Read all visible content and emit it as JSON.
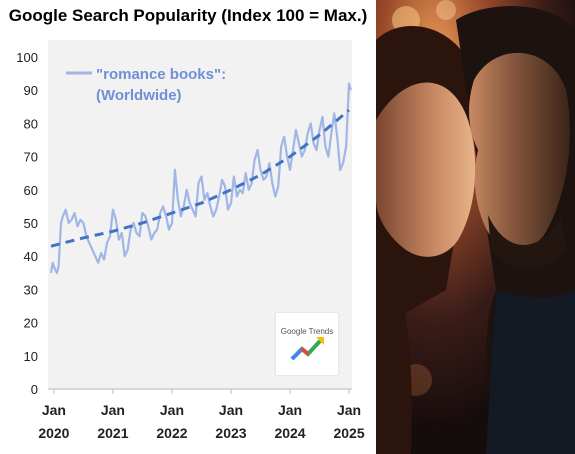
{
  "chart_data": {
    "type": "line",
    "title": "Google Search Popularity (Index 100 = Max.)",
    "legend": [
      "\"romance books\":",
      "(Worldwide)"
    ],
    "series": [
      {
        "name": "\"romance books\": (Worldwide)",
        "style": "solid",
        "color": "#9fb6e6",
        "x": [
          2019.95,
          2019.98,
          2020.02,
          2020.05,
          2020.08,
          2020.12,
          2020.15,
          2020.2,
          2020.25,
          2020.3,
          2020.35,
          2020.4,
          2020.45,
          2020.5,
          2020.55,
          2020.6,
          2020.65,
          2020.7,
          2020.75,
          2020.8,
          2020.85,
          2020.9,
          2020.95,
          2021.0,
          2021.05,
          2021.1,
          2021.15,
          2021.2,
          2021.25,
          2021.3,
          2021.35,
          2021.4,
          2021.45,
          2021.5,
          2021.55,
          2021.6,
          2021.65,
          2021.7,
          2021.75,
          2021.8,
          2021.85,
          2021.9,
          2021.95,
          2022.0,
          2022.05,
          2022.1,
          2022.15,
          2022.2,
          2022.25,
          2022.3,
          2022.35,
          2022.4,
          2022.45,
          2022.5,
          2022.55,
          2022.6,
          2022.65,
          2022.7,
          2022.75,
          2022.8,
          2022.85,
          2022.9,
          2022.95,
          2023.0,
          2023.05,
          2023.1,
          2023.15,
          2023.2,
          2023.25,
          2023.3,
          2023.35,
          2023.4,
          2023.45,
          2023.5,
          2023.55,
          2023.6,
          2023.65,
          2023.7,
          2023.75,
          2023.8,
          2023.85,
          2023.9,
          2023.95,
          2024.0,
          2024.05,
          2024.1,
          2024.15,
          2024.2,
          2024.25,
          2024.3,
          2024.35,
          2024.4,
          2024.45,
          2024.5,
          2024.55,
          2024.6,
          2024.65,
          2024.7,
          2024.75,
          2024.8,
          2024.85,
          2024.9,
          2024.95,
          2025.0,
          2025.03
        ],
        "values": [
          35,
          38,
          36,
          35,
          37,
          50,
          52,
          54,
          50,
          51,
          53,
          49,
          51,
          50,
          46,
          44,
          42,
          40,
          38,
          41,
          39,
          44,
          46,
          54,
          51,
          45,
          47,
          40,
          42,
          48,
          50,
          47,
          46,
          53,
          52,
          49,
          45,
          47,
          48,
          53,
          55,
          52,
          48,
          50,
          66,
          57,
          52,
          55,
          60,
          56,
          54,
          52,
          62,
          64,
          57,
          59,
          55,
          52,
          54,
          58,
          63,
          61,
          54,
          56,
          64,
          58,
          60,
          59,
          65,
          60,
          62,
          69,
          72,
          66,
          63,
          64,
          68,
          62,
          58,
          61,
          73,
          76,
          70,
          66,
          72,
          78,
          74,
          70,
          72,
          77,
          80,
          74,
          72,
          78,
          82,
          73,
          70,
          77,
          83,
          76,
          66,
          68,
          73,
          92,
          90
        ]
      },
      {
        "name": "trend",
        "style": "dashed",
        "color": "#4472c4",
        "x": [
          2019.95,
          2020.5,
          2021.0,
          2021.5,
          2022.0,
          2022.5,
          2023.0,
          2023.5,
          2024.0,
          2024.5,
          2025.0
        ],
        "values": [
          43,
          45.5,
          47.5,
          50,
          53,
          56,
          60,
          64.5,
          70,
          76.5,
          84
        ]
      }
    ],
    "xlim": [
      2019.9,
      2025.05
    ],
    "ylim": [
      0,
      100
    ],
    "ytick_labels": [
      "0",
      "10",
      "20",
      "30",
      "40",
      "50",
      "60",
      "70",
      "80",
      "90",
      "100"
    ],
    "xtick_labels": [
      {
        "label": [
          "Jan",
          "2020"
        ],
        "x": 2020
      },
      {
        "label": [
          "Jan",
          "2021"
        ],
        "x": 2021
      },
      {
        "label": [
          "Jan",
          "2022"
        ],
        "x": 2022
      },
      {
        "label": [
          "Jan",
          "2023"
        ],
        "x": 2023
      },
      {
        "label": [
          "Jan",
          "2024"
        ],
        "x": 2024
      },
      {
        "label": [
          "Jan",
          "2025"
        ],
        "x": 2025
      }
    ],
    "grid": false,
    "legend_position": "top-left"
  },
  "badge": {
    "text": "Google Trends"
  }
}
